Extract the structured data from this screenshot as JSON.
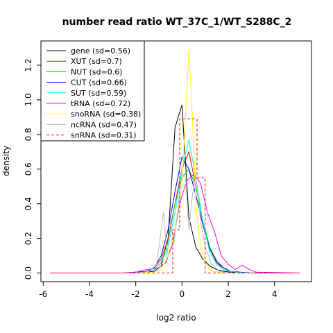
{
  "chart_data": {
    "type": "line",
    "title": "number read ratio WT_37C_1/WT_S288C_2",
    "xlabel": "log2 ratio",
    "ylabel": "density",
    "xlim": [
      -6.1,
      5.6
    ],
    "ylim": [
      -0.05,
      1.34
    ],
    "xticks": [
      -6,
      -4,
      -2,
      0,
      2,
      4
    ],
    "yticks": [
      0.0,
      0.2,
      0.4,
      0.6,
      0.8,
      1.0,
      1.2
    ],
    "xtick_labels": [
      "-6",
      "-4",
      "-2",
      "0",
      "2",
      "4"
    ],
    "ytick_labels": [
      "0.0",
      "0.2",
      "0.4",
      "0.6",
      "0.8",
      "1.0",
      "1.2"
    ],
    "grid": false,
    "legend_position": "top-left",
    "series": [
      {
        "name": "gene (sd=0.56)",
        "color": "#000000",
        "dash": "solid",
        "x": [
          -5.7,
          -2.5,
          -2.0,
          -1.5,
          -1.2,
          -0.9,
          -0.6,
          -0.3,
          0.0,
          0.3,
          0.6,
          0.9,
          1.2,
          1.5,
          1.8,
          2.1,
          2.5,
          3.0,
          5.1
        ],
        "y": [
          0,
          0,
          0.002,
          0.005,
          0.01,
          0.04,
          0.2,
          0.84,
          0.97,
          0.32,
          0.15,
          0.08,
          0.04,
          0.02,
          0.01,
          0.005,
          0.002,
          0,
          0
        ]
      },
      {
        "name": "XUT (sd=0.7)",
        "color": "#ff0000",
        "dash": "solid",
        "x": [
          -2.5,
          -1.5,
          -1.2,
          -0.9,
          -0.6,
          -0.3,
          0.0,
          0.3,
          0.6,
          0.9,
          1.2,
          1.5,
          1.8,
          2.1,
          2.5,
          3.0
        ],
        "y": [
          0,
          0.01,
          0.03,
          0.08,
          0.2,
          0.4,
          0.6,
          0.7,
          0.5,
          0.3,
          0.15,
          0.07,
          0.03,
          0.01,
          0.005,
          0
        ]
      },
      {
        "name": "NUT (sd=0.6)",
        "color": "#00cc00",
        "dash": "solid",
        "x": [
          -2.5,
          -1.5,
          -1.2,
          -0.9,
          -0.6,
          -0.3,
          0.0,
          0.3,
          0.6,
          0.9,
          1.2,
          1.5,
          1.8,
          2.1,
          2.5,
          3.0
        ],
        "y": [
          0,
          0.005,
          0.02,
          0.06,
          0.18,
          0.4,
          0.55,
          0.6,
          0.5,
          0.3,
          0.15,
          0.06,
          0.02,
          0.01,
          0.002,
          0
        ]
      },
      {
        "name": "CUT (sd=0.66)",
        "color": "#0000ff",
        "dash": "solid",
        "x": [
          -2.5,
          -1.5,
          -1.2,
          -0.9,
          -0.6,
          -0.3,
          0.0,
          0.3,
          0.6,
          0.9,
          1.2,
          1.5,
          1.8,
          2.1,
          2.5,
          3.0
        ],
        "y": [
          0,
          0.01,
          0.03,
          0.1,
          0.25,
          0.47,
          0.67,
          0.6,
          0.45,
          0.28,
          0.14,
          0.06,
          0.03,
          0.01,
          0.005,
          0
        ]
      },
      {
        "name": "SUT (sd=0.59)",
        "color": "#00ffff",
        "dash": "solid",
        "x": [
          -2.5,
          -1.5,
          -1.2,
          -0.9,
          -0.6,
          -0.3,
          0.0,
          0.3,
          0.6,
          0.9,
          1.2,
          1.5,
          1.8,
          2.1,
          2.5,
          3.0
        ],
        "y": [
          0,
          0.005,
          0.02,
          0.06,
          0.15,
          0.35,
          0.6,
          0.77,
          0.55,
          0.3,
          0.12,
          0.05,
          0.02,
          0.01,
          0.002,
          0
        ]
      },
      {
        "name": "tRNA (sd=0.72)",
        "color": "#ff00ff",
        "dash": "solid",
        "x": [
          -5.7,
          -2.5,
          -2.0,
          -1.5,
          -1.0,
          -0.7,
          -0.4,
          -0.1,
          0.2,
          0.5,
          0.8,
          1.1,
          1.4,
          1.7,
          2.0,
          2.3,
          2.6,
          2.9,
          3.2,
          5.1
        ],
        "y": [
          0,
          0,
          0.005,
          0.02,
          0.03,
          0.06,
          0.17,
          0.4,
          0.53,
          0.57,
          0.52,
          0.35,
          0.24,
          0.1,
          0.05,
          0.02,
          0.045,
          0.02,
          0.005,
          0
        ]
      },
      {
        "name": "snoRNA (sd=0.38)",
        "color": "#ffff00",
        "dash": "solid",
        "x": [
          -2.0,
          -1.2,
          -0.9,
          -0.6,
          -0.3,
          0.0,
          0.15,
          0.3,
          0.45,
          0.6,
          0.8,
          1.0,
          1.3,
          1.6,
          2.0
        ],
        "y": [
          0,
          0.005,
          0.02,
          0.1,
          0.25,
          0.5,
          0.9,
          1.29,
          0.9,
          0.4,
          0.15,
          0.05,
          0.01,
          0.003,
          0
        ]
      },
      {
        "name": "ncRNA (sd=0.47)",
        "color": "#bebebe",
        "dash": "solid",
        "x": [
          -2.0,
          -1.4,
          -1.1,
          -0.8,
          -0.65,
          -0.5,
          -0.35,
          -0.2,
          0.0,
          0.15,
          0.3,
          0.45,
          0.6,
          0.8,
          1.0,
          1.3,
          1.6,
          2.0
        ],
        "y": [
          0,
          0.01,
          0.05,
          0.35,
          0.1,
          0.3,
          0.17,
          0.35,
          0.58,
          0.55,
          0.25,
          0.45,
          0.56,
          0.3,
          0.15,
          0.05,
          0.01,
          0
        ]
      },
      {
        "name": "snRNA (sd=0.31)",
        "color": "#ff0000",
        "dash": "dashed",
        "x": [
          -5.7,
          -0.4,
          -0.4,
          -0.1,
          -0.1,
          0.65,
          0.65,
          1.0,
          1.0,
          5.1
        ],
        "y": [
          0,
          0,
          0.25,
          0.25,
          0.89,
          0.89,
          0.55,
          0.55,
          0,
          0
        ]
      }
    ]
  }
}
